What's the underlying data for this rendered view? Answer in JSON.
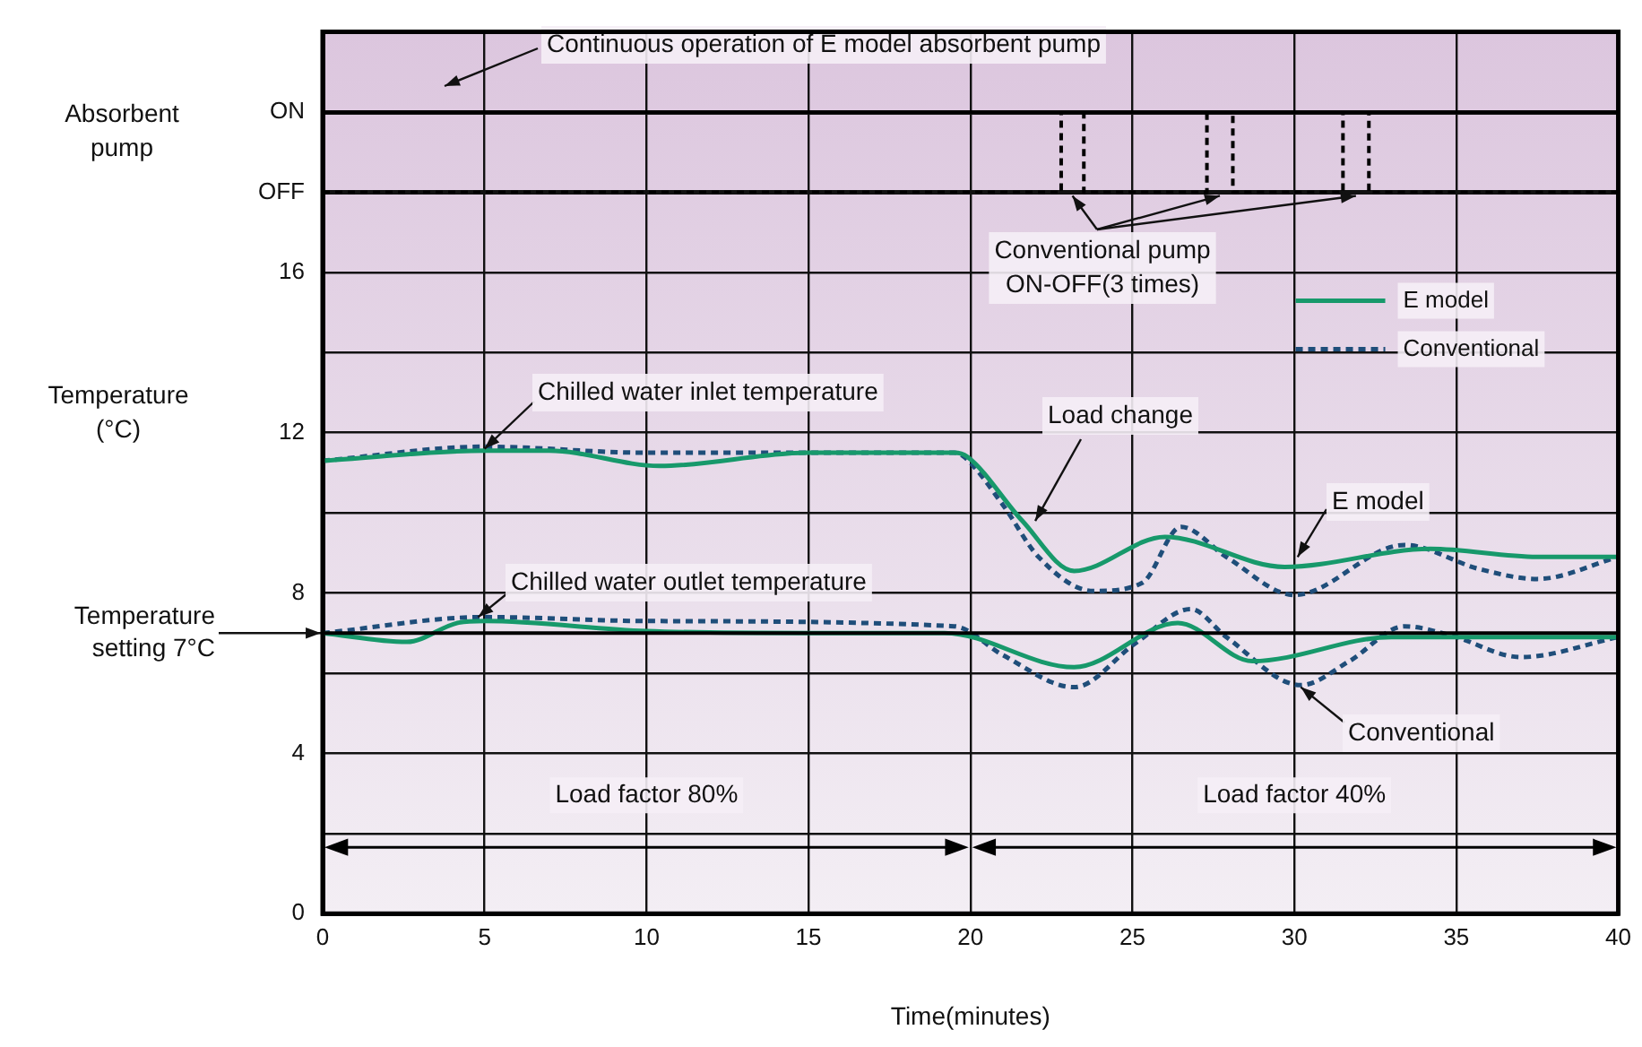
{
  "chart_data": {
    "type": "line",
    "xlabel": "Time(minutes)",
    "ylabel": "Temperature (°C)",
    "xlim": [
      0,
      40
    ],
    "xticks": [
      0,
      5,
      10,
      15,
      20,
      25,
      30,
      35,
      40
    ],
    "ylim": [
      0,
      22
    ],
    "yticks": [
      0,
      {
        "value": 2,
        "label": null
      },
      4,
      {
        "value": 6,
        "label": null
      },
      8,
      {
        "value": 10,
        "label": null
      },
      12,
      {
        "value": 14,
        "label": null
      },
      16,
      {
        "value": 18,
        "label": "OFF"
      },
      {
        "value": 20,
        "label": "ON"
      }
    ],
    "grid": true,
    "legend": "top right",
    "series": [
      {
        "name": "E model",
        "color": "#17996b",
        "line_style": "solid",
        "x": [
          0,
          5,
          7,
          10.4,
          15,
          19.5,
          19.9,
          21.6,
          23.2,
          26.0,
          29.7,
          34.2,
          37.5,
          40
        ],
        "values": [
          11.3,
          11.55,
          11.55,
          11.17,
          11.5,
          11.5,
          11.4,
          9.8,
          8.55,
          9.4,
          8.65,
          9.1,
          8.9,
          8.9
        ]
      },
      {
        "name": "Conventional",
        "color": "#1f4e7a",
        "line_style": "dashed",
        "x": [
          0,
          5,
          10,
          15,
          19.5,
          19.8,
          21,
          22.1,
          23.8,
          25.3,
          26.5,
          27.9,
          30.0,
          33.4,
          35.7,
          37.5,
          40
        ],
        "values": [
          11.3,
          11.65,
          11.5,
          11.5,
          11.5,
          11.4,
          10.2,
          8.9,
          8.05,
          8.25,
          9.65,
          8.9,
          7.95,
          9.2,
          8.6,
          8.35,
          8.9
        ]
      },
      {
        "color": "#17996b",
        "line_style": "solid",
        "x": [
          0,
          2.6,
          4.2,
          5,
          10,
          15,
          19.2,
          23.2,
          26.4,
          28.7,
          33,
          36,
          40
        ],
        "values": [
          7.0,
          6.78,
          7.26,
          7.3,
          7.05,
          7.0,
          7.0,
          6.15,
          7.25,
          6.3,
          6.9,
          6.9,
          6.9
        ]
      },
      {
        "color": "#1f4e7a",
        "line_style": "dashed",
        "x": [
          0,
          5,
          10,
          19.5,
          21,
          23.2,
          25.1,
          26.8,
          27.9,
          30.2,
          31.7,
          33.4,
          34.8,
          37,
          40
        ],
        "values": [
          7.0,
          7.4,
          7.3,
          7.17,
          6.45,
          5.65,
          6.75,
          7.6,
          6.9,
          5.7,
          6.3,
          7.17,
          6.95,
          6.4,
          6.9
        ]
      },
      {
        "color": "#000000",
        "line_style": "solid",
        "x": [
          0,
          40
        ],
        "values": [
          20,
          20
        ]
      },
      {
        "type": "step",
        "color": "#000000",
        "line_style": "dashed",
        "x": [
          0,
          22.8,
          23.5,
          27.3,
          28.1,
          31.5,
          32.3,
          40
        ],
        "values": [
          18,
          20,
          18,
          20,
          18,
          20,
          18,
          18
        ]
      }
    ],
    "ref_lines": [
      {
        "axis": "y",
        "value": 7,
        "label": "Temperature setting 7°C",
        "color": "#000000"
      }
    ],
    "annotations": [
      "Continuous operation of E model absorbent pump",
      "Conventional pump\nON-OFF(3 times)",
      {
        "text": "Chilled water inlet temperature",
        "x": 5,
        "y": 11.6
      },
      {
        "text": "Load change",
        "x": 22,
        "y": 9.8
      },
      {
        "text": "E model",
        "x": 30.1,
        "y": 8.9
      },
      {
        "text": "Chilled water outlet temperature",
        "x": 4.8,
        "y": 7.4
      },
      {
        "text": "Conventional",
        "x": 30.2,
        "y": 5.65
      },
      "Absorbent pump",
      "Load factor 80%",
      "Load factor 40%"
    ]
  }
}
